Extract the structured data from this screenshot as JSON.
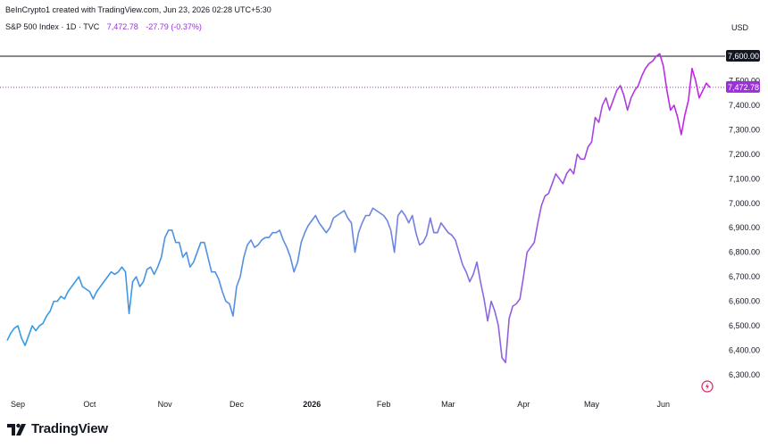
{
  "header": {
    "credit": "BeInCrypto1 created with TradingView.com, Jun 23, 2026 02:28 UTC+5:30",
    "symbol": "S&P 500 Index · 1D · TVC",
    "last": "7,472.78",
    "change": "-27.79 (-0.37%)",
    "currency": "USD"
  },
  "footer": {
    "brand": "TradingView"
  },
  "colors": {
    "gradient_start": "#2e9ee6",
    "gradient_end": "#c81fe4",
    "accent": "#9b30d9",
    "reference_line": "#131722"
  },
  "icons": [
    "tradingview-logo-icon",
    "lightning-snapshot-icon"
  ],
  "chart_data": {
    "type": "line",
    "title": "S&P 500 Index · 1D · TVC",
    "xlabel": "",
    "ylabel": "USD",
    "ylim": [
      6280,
      7640
    ],
    "grid": false,
    "y_ticks": [
      "7,600.00",
      "7,500.00",
      "7,400.00",
      "7,300.00",
      "7,200.00",
      "7,100.00",
      "7,000.00",
      "6,900.00",
      "6,800.00",
      "6,700.00",
      "6,600.00",
      "6,500.00",
      "6,400.00",
      "6,300.00"
    ],
    "y_tick_values": [
      7600,
      7500,
      7400,
      7300,
      7200,
      7100,
      7000,
      6900,
      6800,
      6700,
      6600,
      6500,
      6400,
      6300
    ],
    "x_ticks": [
      {
        "label": "Sep",
        "index": 3,
        "bold": false
      },
      {
        "label": "Oct",
        "index": 23,
        "bold": false
      },
      {
        "label": "Nov",
        "index": 44,
        "bold": false
      },
      {
        "label": "Dec",
        "index": 64,
        "bold": false
      },
      {
        "label": "2026",
        "index": 85,
        "bold": true
      },
      {
        "label": "Feb",
        "index": 105,
        "bold": false
      },
      {
        "label": "Mar",
        "index": 123,
        "bold": false
      },
      {
        "label": "Apr",
        "index": 144,
        "bold": false
      },
      {
        "label": "May",
        "index": 163,
        "bold": false
      },
      {
        "label": "Jun",
        "index": 183,
        "bold": false
      }
    ],
    "reference_line": {
      "value": 7600,
      "label": "7,600.00"
    },
    "last_price": {
      "value": 7472.78,
      "label": "7,472.78"
    },
    "series": [
      {
        "values": [
          6440,
          6470,
          6490,
          6500,
          6450,
          6420,
          6460,
          6500,
          6480,
          6500,
          6510,
          6540,
          6560,
          6600,
          6600,
          6620,
          6610,
          6640,
          6660,
          6680,
          6700,
          6660,
          6650,
          6640,
          6610,
          6640,
          6660,
          6680,
          6700,
          6720,
          6710,
          6720,
          6740,
          6720,
          6550,
          6680,
          6700,
          6660,
          6680,
          6730,
          6740,
          6710,
          6740,
          6780,
          6860,
          6890,
          6890,
          6840,
          6840,
          6780,
          6800,
          6740,
          6760,
          6800,
          6840,
          6840,
          6780,
          6720,
          6720,
          6690,
          6640,
          6600,
          6590,
          6540,
          6660,
          6700,
          6780,
          6830,
          6850,
          6820,
          6830,
          6850,
          6860,
          6860,
          6880,
          6880,
          6890,
          6850,
          6820,
          6780,
          6720,
          6760,
          6840,
          6880,
          6910,
          6930,
          6950,
          6920,
          6900,
          6880,
          6900,
          6940,
          6950,
          6960,
          6970,
          6940,
          6920,
          6800,
          6880,
          6920,
          6950,
          6950,
          6980,
          6970,
          6960,
          6950,
          6930,
          6890,
          6800,
          6950,
          6970,
          6950,
          6920,
          6950,
          6880,
          6830,
          6840,
          6870,
          6940,
          6880,
          6880,
          6920,
          6900,
          6880,
          6870,
          6850,
          6800,
          6750,
          6720,
          6680,
          6710,
          6760,
          6680,
          6610,
          6520,
          6600,
          6560,
          6500,
          6370,
          6350,
          6530,
          6580,
          6590,
          6610,
          6700,
          6800,
          6820,
          6840,
          6920,
          6990,
          7030,
          7040,
          7080,
          7120,
          7100,
          7080,
          7120,
          7140,
          7120,
          7200,
          7180,
          7180,
          7230,
          7250,
          7350,
          7330,
          7400,
          7430,
          7380,
          7420,
          7460,
          7480,
          7440,
          7380,
          7430,
          7460,
          7480,
          7520,
          7550,
          7570,
          7580,
          7600,
          7610,
          7560,
          7460,
          7380,
          7400,
          7350,
          7280,
          7360,
          7420,
          7550,
          7500,
          7430,
          7460,
          7490,
          7472.78
        ]
      }
    ]
  }
}
